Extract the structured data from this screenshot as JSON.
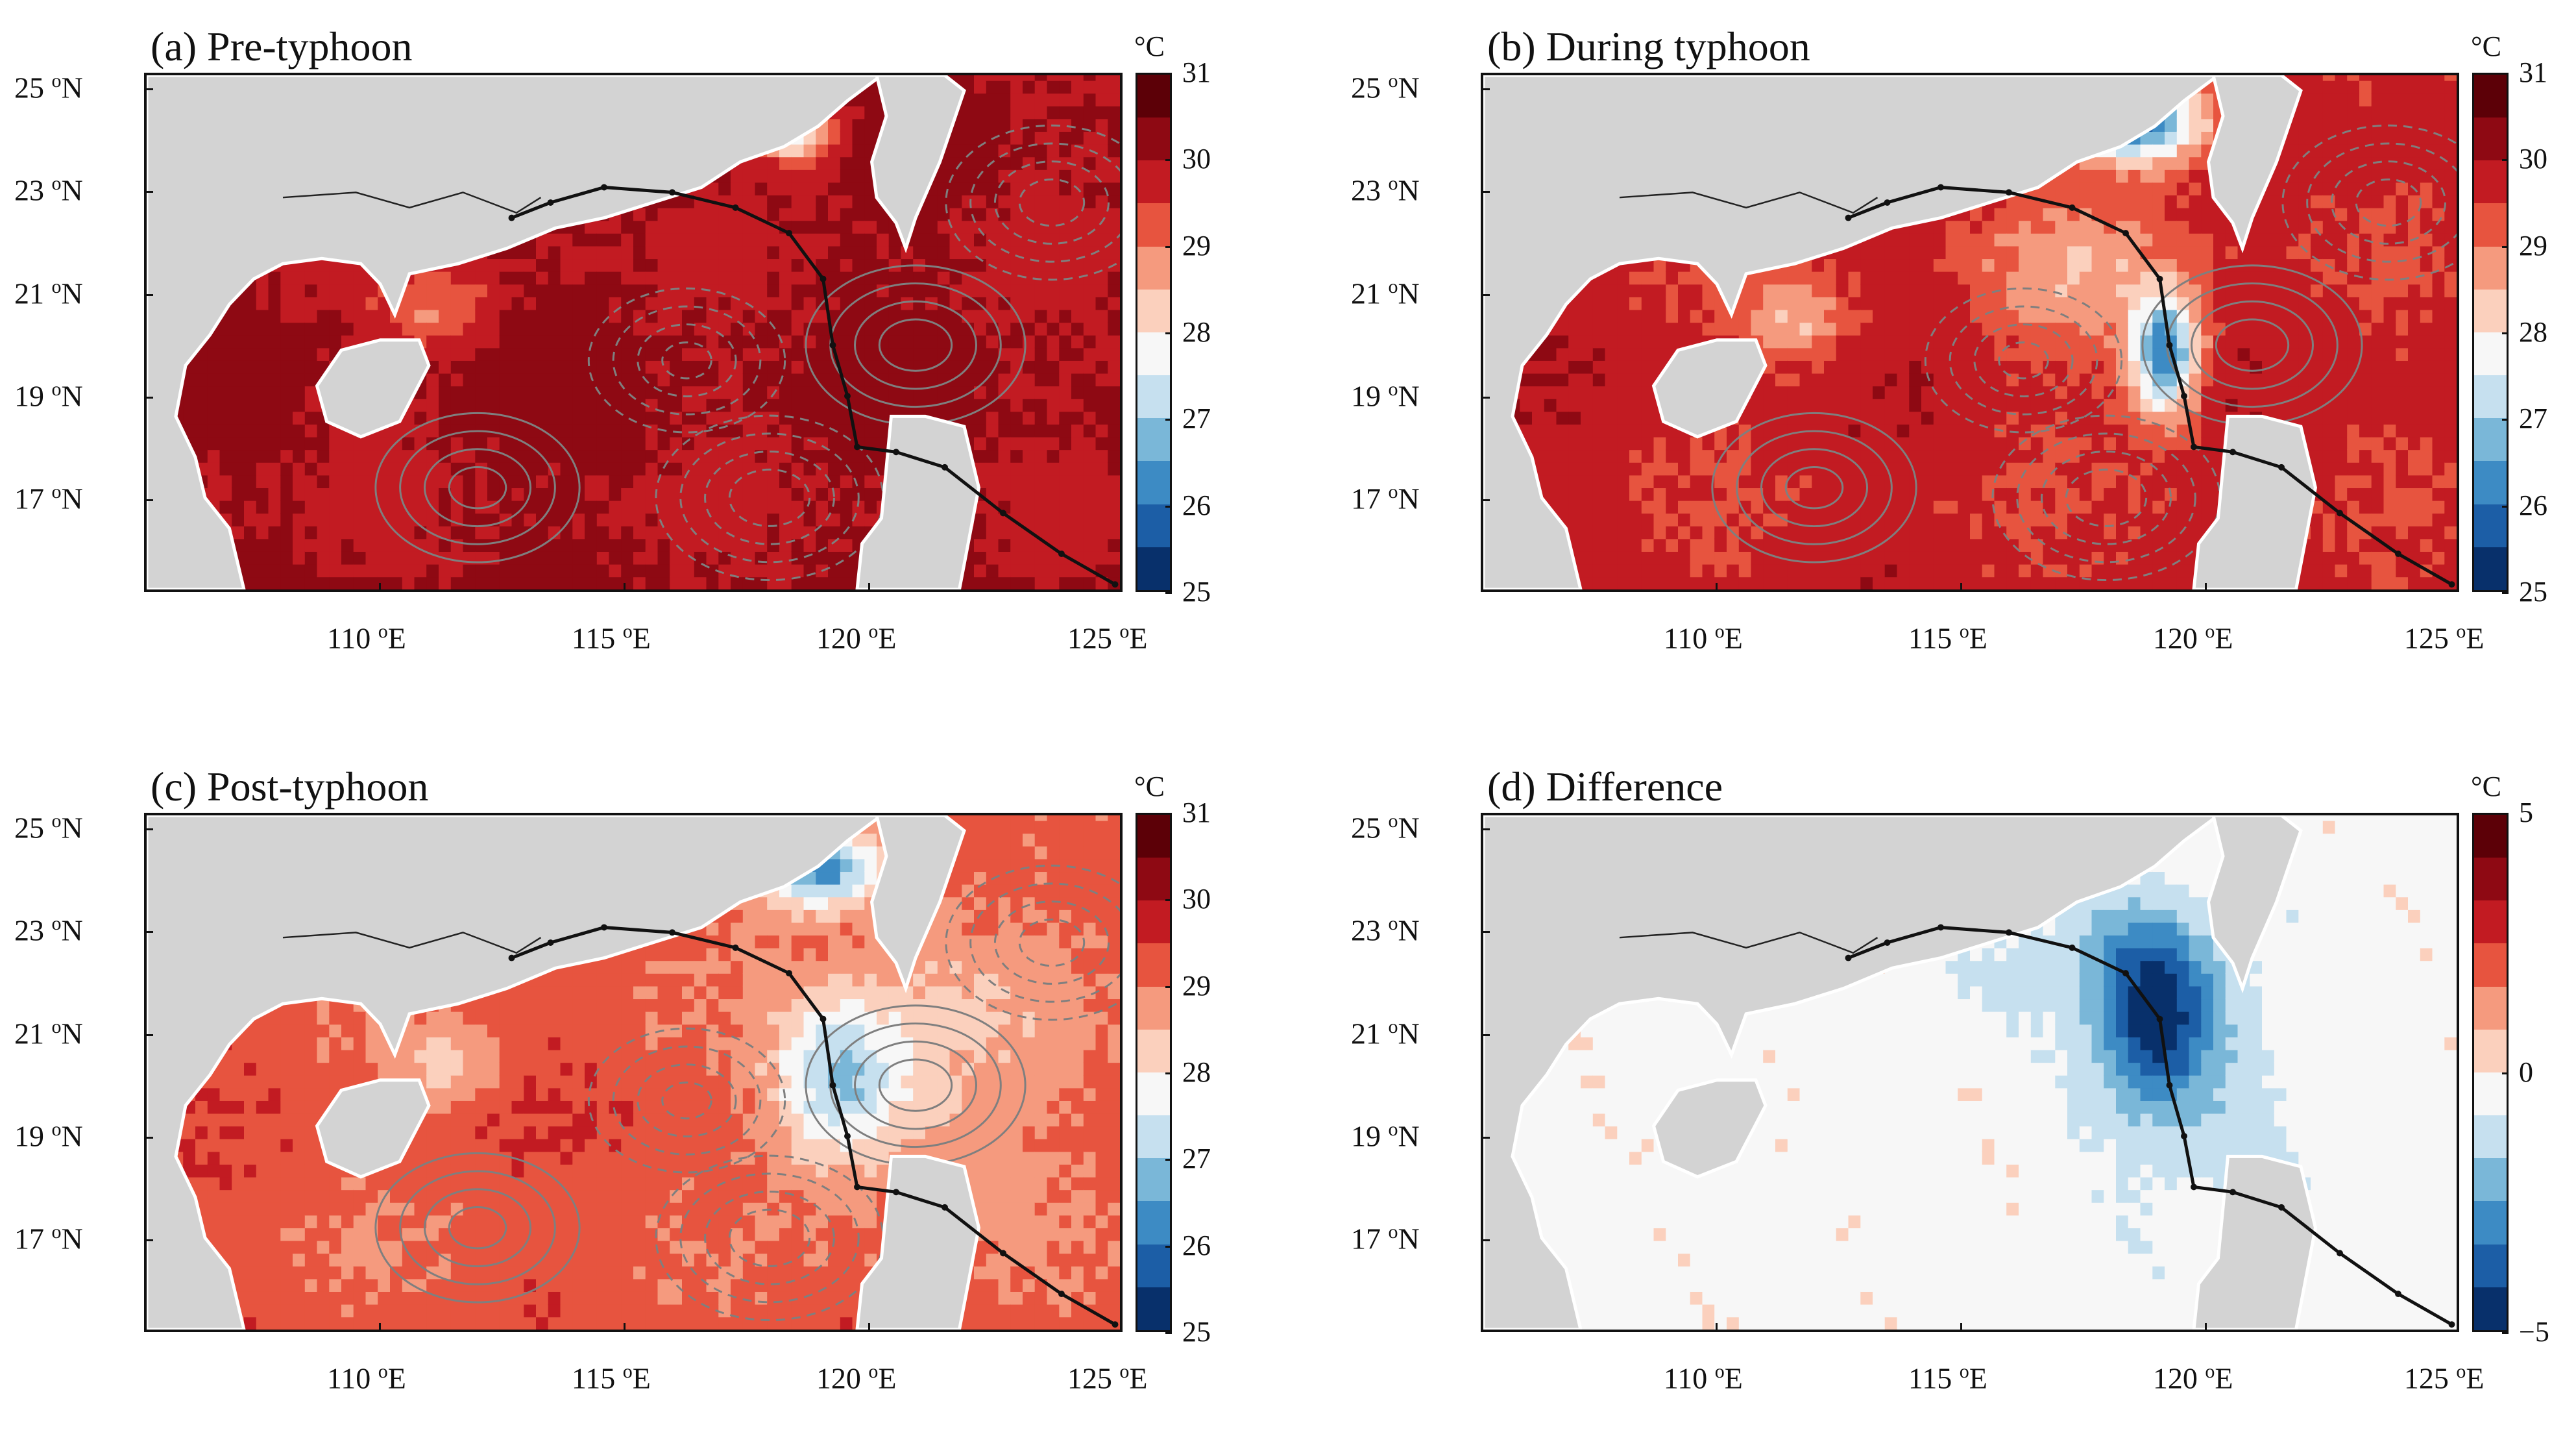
{
  "panels": [
    {
      "id": "a",
      "title": "(a) Pre-typhoon",
      "scale": "sst"
    },
    {
      "id": "b",
      "title": "(b) During typhoon",
      "scale": "sst"
    },
    {
      "id": "c",
      "title": "(c) Post-typhoon",
      "scale": "sst"
    },
    {
      "id": "d",
      "title": "(d) Difference",
      "scale": "diff"
    }
  ],
  "axes": {
    "lat_labels": [
      {
        "deg": "25",
        "unit": "o",
        "hemi": "N",
        "value": 25
      },
      {
        "deg": "23",
        "unit": "o",
        "hemi": "N",
        "value": 23
      },
      {
        "deg": "21",
        "unit": "o",
        "hemi": "N",
        "value": 21
      },
      {
        "deg": "19",
        "unit": "o",
        "hemi": "N",
        "value": 19
      },
      {
        "deg": "17",
        "unit": "o",
        "hemi": "N",
        "value": 17
      }
    ],
    "lon_labels": [
      {
        "deg": "110",
        "unit": "o",
        "hemi": "E",
        "value": 110
      },
      {
        "deg": "115",
        "unit": "o",
        "hemi": "E",
        "value": 115
      },
      {
        "deg": "120",
        "unit": "o",
        "hemi": "E",
        "value": 120
      }
    ],
    "lon_end_deg": "125",
    "lon_end_unit": "o",
    "lon_end_hemi": "E",
    "lon_end_value": 125,
    "lat_range": [
      15.2,
      25.3
    ],
    "lon_range": [
      105.2,
      125.2
    ]
  },
  "colorbars": {
    "sst": {
      "unit": "°C",
      "ticks": [
        "31",
        "30",
        "29",
        "28",
        "27",
        "26",
        "25"
      ],
      "min": 25,
      "max": 31
    },
    "diff": {
      "unit": "°C",
      "ticks": [
        "5",
        "0",
        "−5"
      ],
      "min": -5,
      "max": 5
    }
  },
  "colors": {
    "land": "#d3d3d3",
    "warm_dark": "#6b0009",
    "warm": "#c81d25",
    "neutral": "#f7f7f7",
    "cool": "#3d7fbc",
    "cool_dark": "#082c63",
    "contour": "#7f7f7f",
    "track": "#111111"
  }
}
